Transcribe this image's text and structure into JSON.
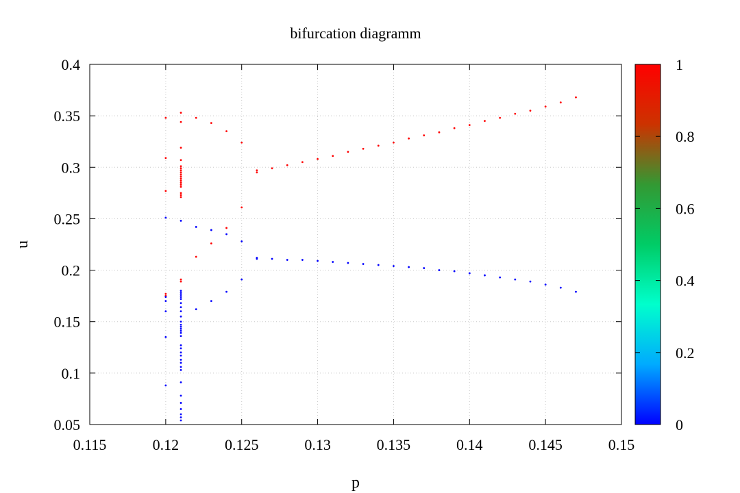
{
  "chart_data": {
    "type": "scatter",
    "title": "bifurcation diagramm",
    "xlabel": "p",
    "ylabel": "u",
    "xlim": [
      0.115,
      0.15
    ],
    "ylim": [
      0.05,
      0.4
    ],
    "x_ticks": [
      "0.115",
      "0.12",
      "0.125",
      "0.13",
      "0.135",
      "0.14",
      "0.145",
      "0.15"
    ],
    "y_ticks": [
      "0.05",
      "0.1",
      "0.15",
      "0.2",
      "0.25",
      "0.3",
      "0.35",
      "0.4"
    ],
    "grid": true,
    "colorbar": {
      "range": [
        0,
        1
      ],
      "ticks": [
        "0",
        "0.2",
        "0.4",
        "0.6",
        "0.8",
        "1"
      ],
      "colors": [
        "#0000ff",
        "#00aaff",
        "#00ffcc",
        "#00cc66",
        "#339933",
        "#cc3300",
        "#ff0000"
      ]
    },
    "series": [
      {
        "color": "#ff0000",
        "points": [
          [
            0.12,
            0.348
          ],
          [
            0.12,
            0.309
          ],
          [
            0.12,
            0.277
          ],
          [
            0.12,
            0.177
          ],
          [
            0.12,
            0.175
          ],
          [
            0.121,
            0.353
          ],
          [
            0.121,
            0.344
          ],
          [
            0.121,
            0.319
          ],
          [
            0.121,
            0.307
          ],
          [
            0.121,
            0.301
          ],
          [
            0.121,
            0.299
          ],
          [
            0.121,
            0.297
          ],
          [
            0.121,
            0.295
          ],
          [
            0.121,
            0.293
          ],
          [
            0.121,
            0.291
          ],
          [
            0.121,
            0.289
          ],
          [
            0.121,
            0.287
          ],
          [
            0.121,
            0.285
          ],
          [
            0.121,
            0.283
          ],
          [
            0.121,
            0.281
          ],
          [
            0.121,
            0.275
          ],
          [
            0.121,
            0.273
          ],
          [
            0.121,
            0.271
          ],
          [
            0.121,
            0.191
          ],
          [
            0.121,
            0.189
          ],
          [
            0.122,
            0.348
          ],
          [
            0.122,
            0.213
          ],
          [
            0.123,
            0.343
          ],
          [
            0.123,
            0.226
          ],
          [
            0.124,
            0.335
          ],
          [
            0.124,
            0.241
          ],
          [
            0.125,
            0.324
          ],
          [
            0.125,
            0.261
          ],
          [
            0.126,
            0.297
          ],
          [
            0.126,
            0.295
          ],
          [
            0.127,
            0.299
          ],
          [
            0.128,
            0.302
          ],
          [
            0.129,
            0.305
          ],
          [
            0.13,
            0.308
          ],
          [
            0.131,
            0.311
          ],
          [
            0.132,
            0.315
          ],
          [
            0.133,
            0.318
          ],
          [
            0.134,
            0.321
          ],
          [
            0.135,
            0.324
          ],
          [
            0.136,
            0.328
          ],
          [
            0.137,
            0.331
          ],
          [
            0.138,
            0.334
          ],
          [
            0.139,
            0.338
          ],
          [
            0.14,
            0.341
          ],
          [
            0.141,
            0.345
          ],
          [
            0.142,
            0.348
          ],
          [
            0.143,
            0.352
          ],
          [
            0.144,
            0.355
          ],
          [
            0.145,
            0.359
          ],
          [
            0.146,
            0.363
          ],
          [
            0.147,
            0.368
          ]
        ]
      },
      {
        "color": "#0000ff",
        "points": [
          [
            0.12,
            0.251
          ],
          [
            0.12,
            0.174
          ],
          [
            0.12,
            0.17
          ],
          [
            0.12,
            0.16
          ],
          [
            0.12,
            0.135
          ],
          [
            0.12,
            0.088
          ],
          [
            0.121,
            0.248
          ],
          [
            0.121,
            0.18
          ],
          [
            0.121,
            0.178
          ],
          [
            0.121,
            0.176
          ],
          [
            0.121,
            0.174
          ],
          [
            0.121,
            0.172
          ],
          [
            0.121,
            0.168
          ],
          [
            0.121,
            0.164
          ],
          [
            0.121,
            0.16
          ],
          [
            0.121,
            0.155
          ],
          [
            0.121,
            0.15
          ],
          [
            0.121,
            0.147
          ],
          [
            0.121,
            0.145
          ],
          [
            0.121,
            0.143
          ],
          [
            0.121,
            0.141
          ],
          [
            0.121,
            0.139
          ],
          [
            0.121,
            0.136
          ],
          [
            0.121,
            0.127
          ],
          [
            0.121,
            0.124
          ],
          [
            0.121,
            0.12
          ],
          [
            0.121,
            0.117
          ],
          [
            0.121,
            0.113
          ],
          [
            0.121,
            0.11
          ],
          [
            0.121,
            0.106
          ],
          [
            0.121,
            0.103
          ],
          [
            0.121,
            0.091
          ],
          [
            0.121,
            0.078
          ],
          [
            0.121,
            0.071
          ],
          [
            0.121,
            0.065
          ],
          [
            0.121,
            0.06
          ],
          [
            0.121,
            0.057
          ],
          [
            0.121,
            0.054
          ],
          [
            0.122,
            0.242
          ],
          [
            0.122,
            0.162
          ],
          [
            0.123,
            0.239
          ],
          [
            0.123,
            0.17
          ],
          [
            0.124,
            0.235
          ],
          [
            0.124,
            0.179
          ],
          [
            0.125,
            0.228
          ],
          [
            0.125,
            0.191
          ],
          [
            0.126,
            0.212
          ],
          [
            0.126,
            0.211
          ],
          [
            0.127,
            0.211
          ],
          [
            0.128,
            0.21
          ],
          [
            0.129,
            0.21
          ],
          [
            0.13,
            0.209
          ],
          [
            0.131,
            0.208
          ],
          [
            0.132,
            0.207
          ],
          [
            0.133,
            0.206
          ],
          [
            0.134,
            0.205
          ],
          [
            0.135,
            0.204
          ],
          [
            0.136,
            0.203
          ],
          [
            0.137,
            0.202
          ],
          [
            0.138,
            0.2
          ],
          [
            0.139,
            0.199
          ],
          [
            0.14,
            0.197
          ],
          [
            0.141,
            0.195
          ],
          [
            0.142,
            0.193
          ],
          [
            0.143,
            0.191
          ],
          [
            0.144,
            0.189
          ],
          [
            0.145,
            0.186
          ],
          [
            0.146,
            0.183
          ],
          [
            0.147,
            0.179
          ]
        ]
      }
    ]
  }
}
